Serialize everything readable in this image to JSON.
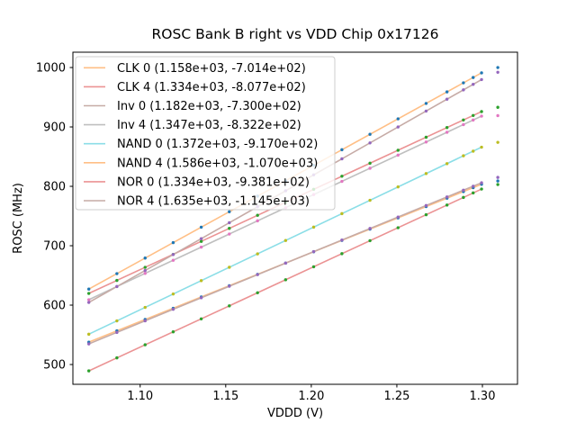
{
  "chart_data": {
    "type": "scatter",
    "title": "ROSC Bank B right vs VDD Chip 0x17126",
    "xlabel": "VDDD (V)",
    "ylabel": "ROSC (MHz)",
    "xlim": [
      1.0607,
      1.3205
    ],
    "ylim": [
      466.7,
      1025.8
    ],
    "xticks": [
      1.1,
      1.15,
      1.2,
      1.25,
      1.3
    ],
    "xtick_labels": [
      "1.10",
      "1.15",
      "1.20",
      "1.25",
      "1.30"
    ],
    "yticks": [
      500,
      600,
      700,
      800,
      900,
      1000
    ],
    "ytick_labels": [
      "500",
      "600",
      "700",
      "800",
      "900",
      "1000"
    ],
    "grid": false,
    "legend_position": "upper-left",
    "x": [
      1.07,
      1.0864,
      1.1029,
      1.1193,
      1.1357,
      1.1521,
      1.1686,
      1.185,
      1.2014,
      1.2179,
      1.2343,
      1.2507,
      1.2671,
      1.2793,
      1.2889,
      1.2946,
      1.2995
    ],
    "fit_line_x_range": [
      1.07,
      1.2995
    ],
    "series": [
      {
        "name": "CLK 0",
        "label": "CLK 0 (1.158e+03, -7.014e+02)",
        "slope": 1158,
        "intercept": -701.4,
        "line_color": "#ffbf86",
        "marker_color": "#1f77b4",
        "y": [
          537.7,
          556.7,
          575.8,
          594.7,
          613.7,
          632.7,
          651.8,
          670.8,
          689.8,
          708.9,
          727.9,
          746.9,
          765.9,
          780.0,
          791.1,
          797.7,
          803.4
        ],
        "outlier": {
          "x": 1.309,
          "y": 809
        }
      },
      {
        "name": "CLK 4",
        "label": "CLK 4 (1.334e+03, -8.077e+02)",
        "slope": 1334,
        "intercept": -807.7,
        "line_color": "#eb9394",
        "marker_color": "#2ca02c",
        "y": [
          619.7,
          641.6,
          663.6,
          685.4,
          707.3,
          729.2,
          751.2,
          773.1,
          795.0,
          817.0,
          838.9,
          860.7,
          882.6,
          898.9,
          911.7,
          919.3,
          925.8
        ],
        "outlier": {
          "x": 1.309,
          "y": 933
        }
      },
      {
        "name": "Inv 0",
        "label": "Inv 0 (1.182e+03, -7.300e+02)",
        "slope": 1182,
        "intercept": -730.0,
        "line_color": "#c6aba6",
        "marker_color": "#9467bd",
        "y": [
          534.7,
          554.1,
          573.6,
          593.0,
          612.4,
          631.8,
          651.3,
          670.7,
          690.1,
          709.6,
          729.0,
          748.3,
          767.7,
          782.1,
          793.5,
          800.2,
          806.0
        ],
        "outlier": {
          "x": 1.309,
          "y": 815
        }
      },
      {
        "name": "Inv 4",
        "label": "Inv 4 (1.347e+03, -8.322e+02)",
        "slope": 1347,
        "intercept": -832.2,
        "line_color": "#bfbfbf",
        "marker_color": "#e377c2",
        "y": [
          609.1,
          631.2,
          653.4,
          675.5,
          697.6,
          719.7,
          741.9,
          764.0,
          786.1,
          808.3,
          830.4,
          852.5,
          874.6,
          891.0,
          903.9,
          911.6,
          918.2
        ],
        "outlier": {
          "x": 1.309,
          "y": 919
        }
      },
      {
        "name": "NAND 0",
        "label": "NAND 0 (1.372e+03, -9.170e+02)",
        "slope": 1372,
        "intercept": -917.0,
        "line_color": "#8bdee7",
        "marker_color": "#bcbd22",
        "y": [
          551.0,
          573.5,
          596.2,
          618.7,
          641.2,
          663.7,
          686.3,
          708.8,
          731.3,
          754.0,
          776.5,
          799.0,
          821.5,
          838.2,
          851.4,
          859.2,
          865.9
        ],
        "outlier": {
          "x": 1.309,
          "y": 874
        }
      },
      {
        "name": "NAND 4",
        "label": "NAND 4 (1.586e+03, -1.070e+03)",
        "slope": 1586,
        "intercept": -1070,
        "line_color": "#ffbf86",
        "marker_color": "#1f77b4",
        "y": [
          627.0,
          653.0,
          679.2,
          705.2,
          731.2,
          757.2,
          783.4,
          809.4,
          835.4,
          861.6,
          887.6,
          913.6,
          939.6,
          959.0,
          974.2,
          983.2,
          991.0
        ],
        "outlier": {
          "x": 1.309,
          "y": 1000
        }
      },
      {
        "name": "NOR 0",
        "label": "NOR 0 (1.334e+03, -9.381e+02)",
        "slope": 1334,
        "intercept": -938.1,
        "line_color": "#eb9394",
        "marker_color": "#2ca02c",
        "y": [
          489.3,
          511.2,
          533.2,
          555.0,
          576.9,
          598.8,
          620.8,
          642.7,
          664.6,
          686.6,
          708.5,
          730.3,
          752.2,
          768.5,
          781.3,
          788.9,
          795.4
        ],
        "outlier": {
          "x": 1.309,
          "y": 803
        }
      },
      {
        "name": "NOR 4",
        "label": "NOR 4 (1.635e+03, -1.145e+03)",
        "slope": 1635,
        "intercept": -1145,
        "line_color": "#c6aba6",
        "marker_color": "#9467bd",
        "y": [
          604.5,
          631.3,
          658.2,
          685.1,
          711.9,
          738.7,
          765.7,
          792.5,
          819.3,
          846.3,
          873.1,
          899.9,
          926.7,
          946.7,
          962.4,
          971.7,
          979.7
        ],
        "outlier": {
          "x": 1.309,
          "y": 992
        }
      }
    ]
  },
  "layout_colors": {
    "background": "#ffffff",
    "spine": "#000000",
    "tick": "#000000",
    "text": "#000000",
    "legend_border": "#cccccc",
    "legend_fill": "rgba(255,255,255,0.8)"
  }
}
